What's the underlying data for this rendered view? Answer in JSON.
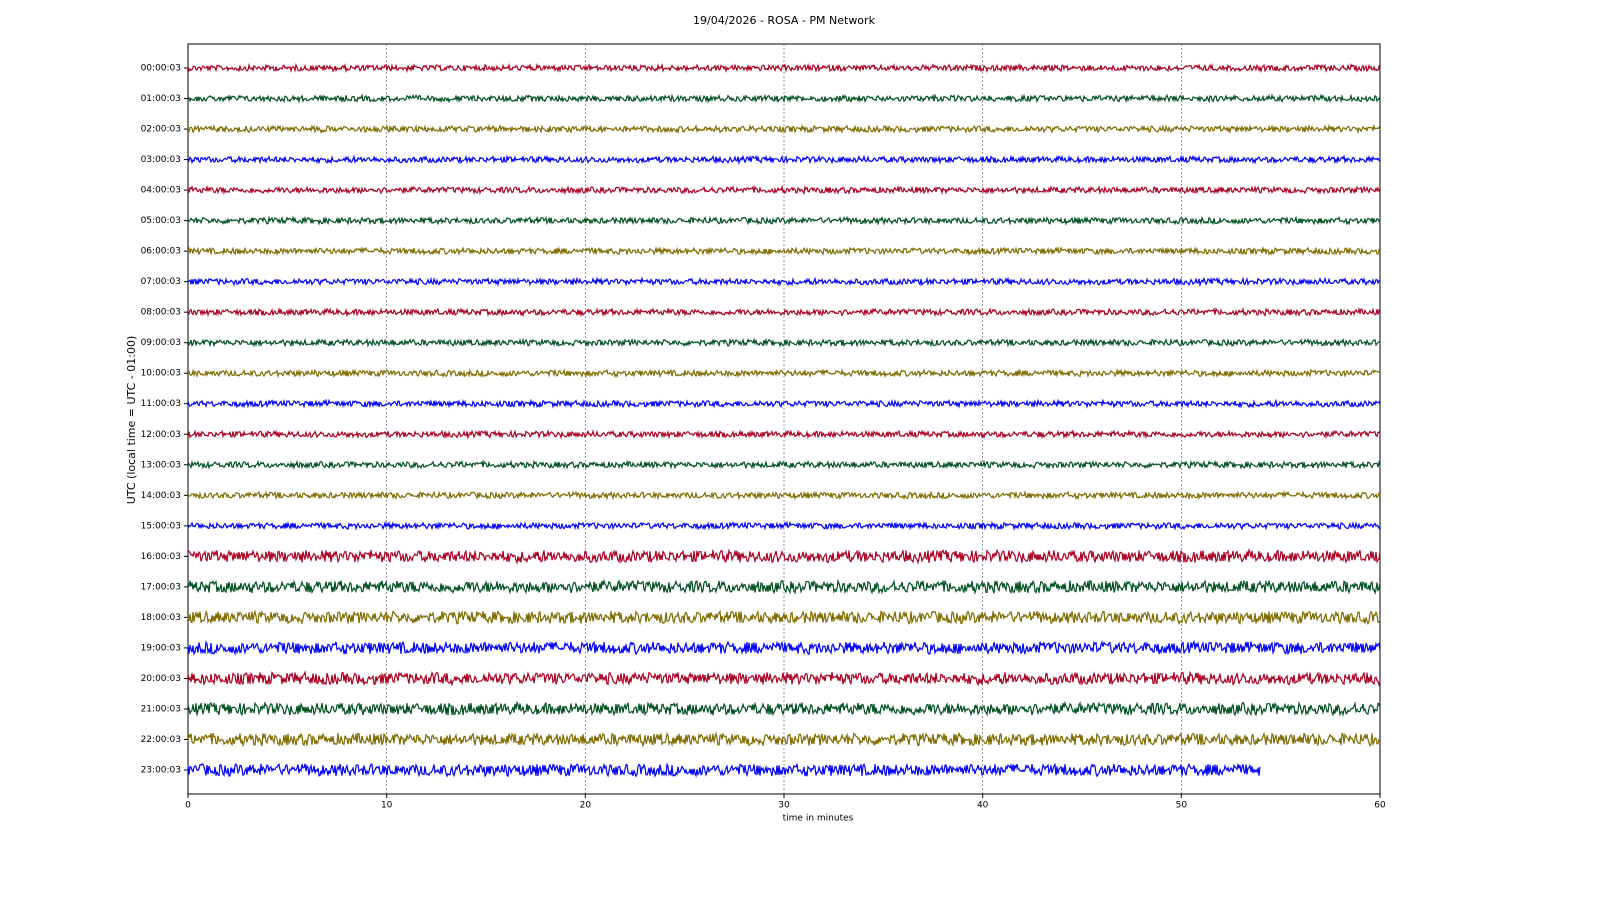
{
  "chart_data": {
    "type": "helicorder",
    "title": "19/04/2026 - ROSA - PM Network",
    "x_label": "time in minutes",
    "y_label": "UTC (local time = UTC - 01:00)",
    "xlim": [
      0,
      60
    ],
    "xticks": [
      0,
      10,
      20,
      30,
      40,
      50,
      60
    ],
    "grid": true,
    "series": [
      {
        "name": "00:00:03",
        "color": "#aa0022",
        "x": [
          0,
          60
        ]
      },
      {
        "name": "01:00:03",
        "color": "#005020",
        "x": [
          0,
          60
        ]
      },
      {
        "name": "02:00:03",
        "color": "#7f6b00",
        "x": [
          0,
          60
        ]
      },
      {
        "name": "03:00:03",
        "color": "#0000ff",
        "x": [
          0,
          60
        ]
      },
      {
        "name": "04:00:03",
        "color": "#aa0022",
        "x": [
          0,
          60
        ]
      },
      {
        "name": "05:00:03",
        "color": "#005020",
        "x": [
          0,
          60
        ]
      },
      {
        "name": "06:00:03",
        "color": "#7f6b00",
        "x": [
          0,
          60
        ]
      },
      {
        "name": "07:00:03",
        "color": "#0000ff",
        "x": [
          0,
          60
        ]
      },
      {
        "name": "08:00:03",
        "color": "#aa0022",
        "x": [
          0,
          60
        ]
      },
      {
        "name": "09:00:03",
        "color": "#005020",
        "x": [
          0,
          60
        ]
      },
      {
        "name": "10:00:03",
        "color": "#7f6b00",
        "x": [
          0,
          60
        ]
      },
      {
        "name": "11:00:03",
        "color": "#0000ff",
        "x": [
          0,
          60
        ]
      },
      {
        "name": "12:00:03",
        "color": "#aa0022",
        "x": [
          0,
          60
        ]
      },
      {
        "name": "13:00:03",
        "color": "#005020",
        "x": [
          0,
          60
        ]
      },
      {
        "name": "14:00:03",
        "color": "#7f6b00",
        "x": [
          0,
          60
        ]
      },
      {
        "name": "15:00:03",
        "color": "#0000ff",
        "x": [
          0,
          60
        ]
      },
      {
        "name": "16:00:03",
        "color": "#aa0022",
        "x": [
          0,
          60
        ]
      },
      {
        "name": "17:00:03",
        "color": "#005020",
        "x": [
          0,
          60
        ]
      },
      {
        "name": "18:00:03",
        "color": "#7f6b00",
        "x": [
          0,
          60
        ]
      },
      {
        "name": "19:00:03",
        "color": "#0000ff",
        "x": [
          0,
          60
        ]
      },
      {
        "name": "20:00:03",
        "color": "#aa0022",
        "x": [
          0,
          60
        ]
      },
      {
        "name": "21:00:03",
        "color": "#005020",
        "x": [
          0,
          60
        ]
      },
      {
        "name": "22:00:03",
        "color": "#7f6b00",
        "x": [
          0,
          60
        ]
      },
      {
        "name": "23:00:03",
        "color": "#0000ff",
        "x": [
          0,
          54
        ]
      }
    ]
  }
}
